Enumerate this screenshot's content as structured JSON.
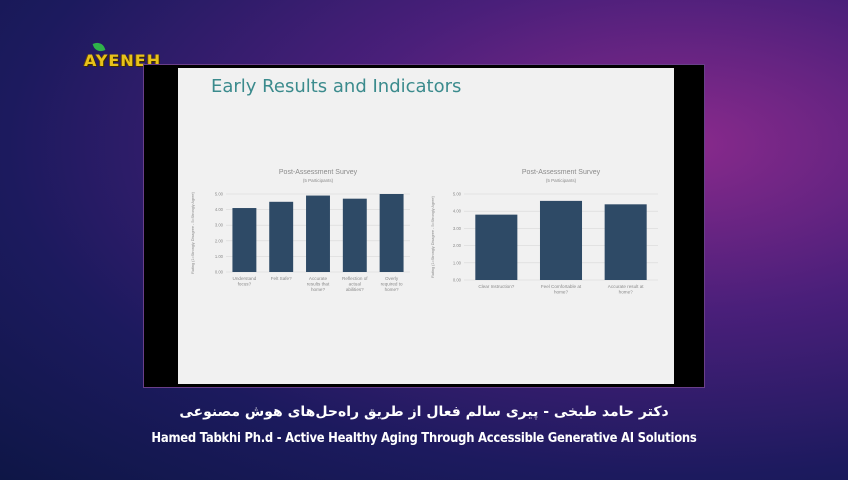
{
  "channel": {
    "logo_text": "AYENEH",
    "accent": "#e8c21a"
  },
  "slide": {
    "title": "Early Results and Indicators"
  },
  "chart_data": [
    {
      "type": "bar",
      "title": "Post-Assessment Survey",
      "subtitle": "(5 Participants)",
      "ylabel": "Rating (1=Strongly Disagree - 5=Strongly Agree)",
      "yticks": [
        "0.00",
        "1.00",
        "2.00",
        "3.00",
        "4.00",
        "5.00"
      ],
      "ylim": [
        0,
        5
      ],
      "categories": [
        "Understand\nfocus?",
        "Felt Safe?",
        "Accurate\nresults that\nhome?",
        "Reflection of\nactual\nabilities?",
        "Overly\nrequired to\nhome?"
      ],
      "values": [
        4.1,
        4.5,
        4.9,
        4.7,
        5.0
      ],
      "color": "#2e4a66"
    },
    {
      "type": "bar",
      "title": "Post-Assessment Survey",
      "subtitle": "(5 Participants)",
      "ylabel": "Rating (1=Strongly Disagree - 5=Strongly Agree)",
      "yticks": [
        "0.00",
        "1.00",
        "2.00",
        "3.00",
        "4.00",
        "5.00"
      ],
      "ylim": [
        0,
        5
      ],
      "categories": [
        "Clear Instruction?",
        "Feel Comfortable at\nhome?",
        "Accurate result at\nhome?"
      ],
      "values": [
        3.8,
        4.6,
        4.4
      ],
      "color": "#2e4a66"
    }
  ],
  "captions": {
    "farsi": "دکتر حامد طبخی - پیری سالم فعال از طریق راه‌حل‌های هوش مصنوعی",
    "english": "Hamed Tabkhi Ph.d - Active Healthy Aging Through Accessible Generative AI Solutions"
  }
}
